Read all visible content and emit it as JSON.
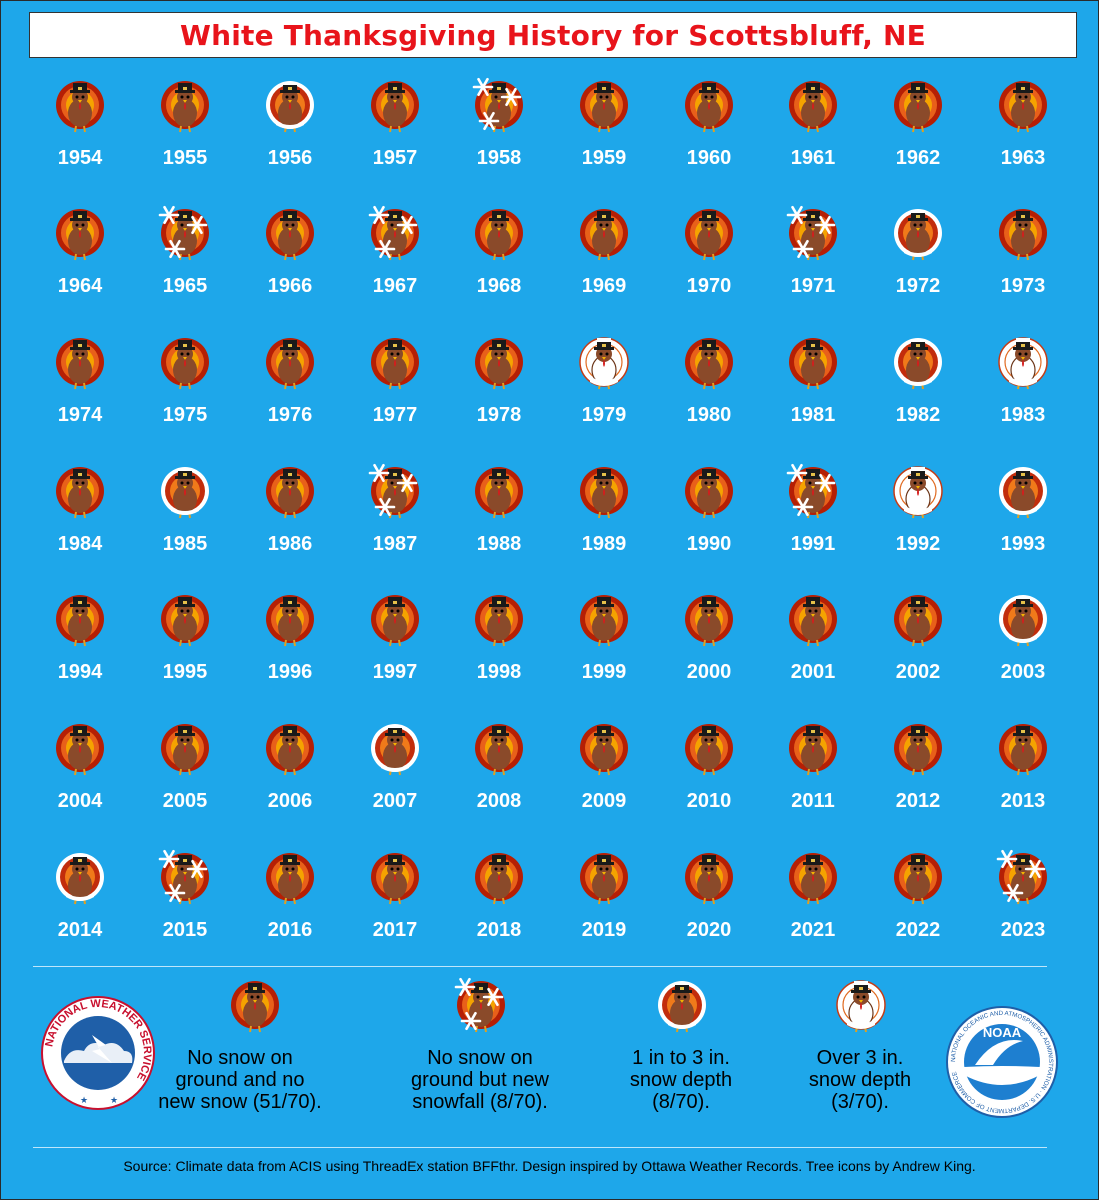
{
  "title": "White Thanksgiving History for Scottsbluff, NE",
  "colors": {
    "background": "#1ea7ea",
    "title": "#e8141b",
    "year_text": "#ffffff"
  },
  "icons": {
    "none": "turkey-icon",
    "snowfall": "turkey-with-snowflakes-icon",
    "depth_1_3": "partly-snow-covered-turkey-icon",
    "depth_over_3": "snow-covered-turkey-icon"
  },
  "years": [
    {
      "year": "1954",
      "cat": "none"
    },
    {
      "year": "1955",
      "cat": "none"
    },
    {
      "year": "1956",
      "cat": "depth_1_3"
    },
    {
      "year": "1957",
      "cat": "none"
    },
    {
      "year": "1958",
      "cat": "snowfall"
    },
    {
      "year": "1959",
      "cat": "none"
    },
    {
      "year": "1960",
      "cat": "none"
    },
    {
      "year": "1961",
      "cat": "none"
    },
    {
      "year": "1962",
      "cat": "none"
    },
    {
      "year": "1963",
      "cat": "none"
    },
    {
      "year": "1964",
      "cat": "none"
    },
    {
      "year": "1965",
      "cat": "snowfall"
    },
    {
      "year": "1966",
      "cat": "none"
    },
    {
      "year": "1967",
      "cat": "snowfall"
    },
    {
      "year": "1968",
      "cat": "none"
    },
    {
      "year": "1969",
      "cat": "none"
    },
    {
      "year": "1970",
      "cat": "none"
    },
    {
      "year": "1971",
      "cat": "snowfall"
    },
    {
      "year": "1972",
      "cat": "depth_1_3"
    },
    {
      "year": "1973",
      "cat": "none"
    },
    {
      "year": "1974",
      "cat": "none"
    },
    {
      "year": "1975",
      "cat": "none"
    },
    {
      "year": "1976",
      "cat": "none"
    },
    {
      "year": "1977",
      "cat": "none"
    },
    {
      "year": "1978",
      "cat": "none"
    },
    {
      "year": "1979",
      "cat": "depth_over_3"
    },
    {
      "year": "1980",
      "cat": "none"
    },
    {
      "year": "1981",
      "cat": "none"
    },
    {
      "year": "1982",
      "cat": "depth_1_3"
    },
    {
      "year": "1983",
      "cat": "depth_over_3"
    },
    {
      "year": "1984",
      "cat": "none"
    },
    {
      "year": "1985",
      "cat": "depth_1_3"
    },
    {
      "year": "1986",
      "cat": "none"
    },
    {
      "year": "1987",
      "cat": "snowfall"
    },
    {
      "year": "1988",
      "cat": "none"
    },
    {
      "year": "1989",
      "cat": "none"
    },
    {
      "year": "1990",
      "cat": "none"
    },
    {
      "year": "1991",
      "cat": "snowfall"
    },
    {
      "year": "1992",
      "cat": "depth_over_3"
    },
    {
      "year": "1993",
      "cat": "depth_1_3"
    },
    {
      "year": "1994",
      "cat": "none"
    },
    {
      "year": "1995",
      "cat": "none"
    },
    {
      "year": "1996",
      "cat": "none"
    },
    {
      "year": "1997",
      "cat": "none"
    },
    {
      "year": "1998",
      "cat": "none"
    },
    {
      "year": "1999",
      "cat": "none"
    },
    {
      "year": "2000",
      "cat": "none"
    },
    {
      "year": "2001",
      "cat": "none"
    },
    {
      "year": "2002",
      "cat": "none"
    },
    {
      "year": "2003",
      "cat": "depth_1_3"
    },
    {
      "year": "2004",
      "cat": "none"
    },
    {
      "year": "2005",
      "cat": "none"
    },
    {
      "year": "2006",
      "cat": "none"
    },
    {
      "year": "2007",
      "cat": "depth_1_3"
    },
    {
      "year": "2008",
      "cat": "none"
    },
    {
      "year": "2009",
      "cat": "none"
    },
    {
      "year": "2010",
      "cat": "none"
    },
    {
      "year": "2011",
      "cat": "none"
    },
    {
      "year": "2012",
      "cat": "none"
    },
    {
      "year": "2013",
      "cat": "none"
    },
    {
      "year": "2014",
      "cat": "depth_1_3"
    },
    {
      "year": "2015",
      "cat": "snowfall"
    },
    {
      "year": "2016",
      "cat": "none"
    },
    {
      "year": "2017",
      "cat": "none"
    },
    {
      "year": "2018",
      "cat": "none"
    },
    {
      "year": "2019",
      "cat": "none"
    },
    {
      "year": "2020",
      "cat": "none"
    },
    {
      "year": "2021",
      "cat": "none"
    },
    {
      "year": "2022",
      "cat": "none"
    },
    {
      "year": "2023",
      "cat": "snowfall"
    }
  ],
  "legend": [
    {
      "cat": "none",
      "lines": [
        "No snow on",
        "ground and no",
        "new snow (51/70)."
      ]
    },
    {
      "cat": "snowfall",
      "lines": [
        "No snow on",
        "ground but new",
        "snowfall (8/70)."
      ]
    },
    {
      "cat": "depth_1_3",
      "lines": [
        "1 in to 3 in.",
        "snow depth",
        "(8/70)."
      ]
    },
    {
      "cat": "depth_over_3",
      "lines": [
        "Over 3 in.",
        "snow depth",
        "(3/70)."
      ]
    }
  ],
  "logos": {
    "nws_text": "NATIONAL WEATHER SERVICE",
    "noaa_text": "NOAA",
    "noaa_ring_text": "NATIONAL OCEANIC AND ATMOSPHERIC ADMINISTRATION · U.S. DEPARTMENT OF COMMERCE"
  },
  "source": "Source: Climate data from ACIS using ThreadEx station BFFthr. Design inspired by Ottawa Weather Records. Tree icons by Andrew King."
}
